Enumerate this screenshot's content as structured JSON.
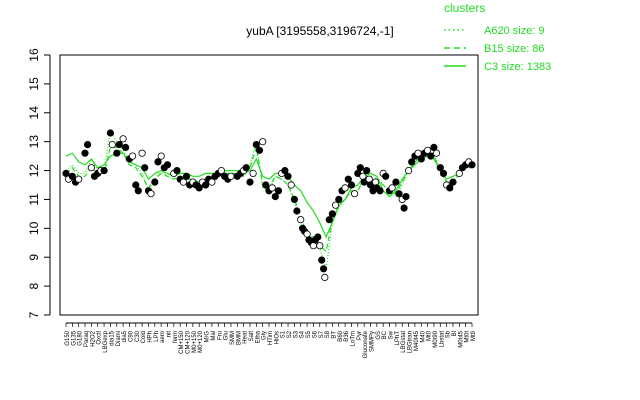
{
  "chart_data": {
    "type": "line",
    "title": "yubA [3195558,3196724,-1]",
    "xlabel": "",
    "ylabel": "",
    "ylim": [
      7,
      16
    ],
    "yticks": [
      7,
      8,
      9,
      10,
      11,
      12,
      13,
      14,
      15,
      16
    ],
    "legend": {
      "placement": "top-right",
      "title": "clusters",
      "entries": [
        {
          "label": "A620 size: 9",
          "style": "dotted"
        },
        {
          "label": "B15 size: 86",
          "style": "dashed"
        },
        {
          "label": "C3 size: 1383",
          "style": "solid"
        }
      ]
    },
    "colors": {
      "series": "#22dd22",
      "points": "#000000",
      "frame": "#000000"
    },
    "x_tick_labels": [
      "G150",
      "G135",
      "G180",
      "Paraq",
      "H2O2",
      "Oxctl",
      "LBGexp",
      "dia15",
      "Diami",
      "dia5",
      "C90",
      "C30",
      "Cold",
      "HPh",
      "LPh",
      "aero",
      "nit",
      "ferm",
      "CM+150",
      "CM+120",
      "M0+150",
      "M0+120",
      "M/G",
      "Mal",
      "Fru",
      "Glu",
      "SMM",
      "BMM",
      "Heat",
      "Salt",
      "Etha",
      "Gly",
      "HTim",
      "HiOs",
      "S1",
      "S2",
      "S3",
      "S4",
      "S5",
      "S6",
      "S7",
      "S8",
      "BT",
      "B60",
      "B36",
      "LoTm",
      "Pyr",
      "Gluconate",
      "SMMPy",
      "GS",
      "BC",
      "Sw",
      "LPhT",
      "LBGstat",
      "LBGtran",
      "M40t45",
      "M40",
      "Mt0",
      "M0t90",
      "Lbstat",
      "Sb",
      "Bl",
      "M0t45",
      "Mt0t",
      "Mt9"
    ],
    "series": [
      {
        "name": "C3 size: 1383",
        "style": "solid",
        "values": [
          12.5,
          12.6,
          12.3,
          12.2,
          12.4,
          12.1,
          12.2,
          12.5,
          12.6,
          12.6,
          12.3,
          12.2,
          12.1,
          11.7,
          11.9,
          12.0,
          11.9,
          11.8,
          11.9,
          11.9,
          11.8,
          11.8,
          11.9,
          11.9,
          11.9,
          12.0,
          12.0,
          12.0,
          11.9,
          12.0,
          12.4,
          11.8,
          11.7,
          11.9,
          11.9,
          11.8,
          11.5,
          11.3,
          10.9,
          10.6,
          10.2,
          9.7,
          10.2,
          10.8,
          11.0,
          11.4,
          11.5,
          11.8,
          11.9,
          11.8,
          11.3,
          11.1,
          11.3,
          11.7,
          12.0,
          12.2,
          12.4,
          12.5,
          12.4,
          12.0,
          11.7,
          11.8,
          11.9,
          12.1,
          12.1
        ]
      },
      {
        "name": "B15 size: 86",
        "style": "dashed",
        "values": [
          11.9,
          12.1,
          11.8,
          11.8,
          12.1,
          11.9,
          11.9,
          12.8,
          12.8,
          12.6,
          12.2,
          12.1,
          11.8,
          11.4,
          11.7,
          11.9,
          11.8,
          11.7,
          11.8,
          11.7,
          11.7,
          11.6,
          11.7,
          11.8,
          11.8,
          11.9,
          11.9,
          11.9,
          11.8,
          12.1,
          12.8,
          11.5,
          11.4,
          11.8,
          11.7,
          11.5,
          11.0,
          10.4,
          9.8,
          9.7,
          9.4,
          9.2,
          10.3,
          10.8,
          11.0,
          11.3,
          11.3,
          11.7,
          11.8,
          11.7,
          11.5,
          11.3,
          11.2,
          11.6,
          12.0,
          12.3,
          12.5,
          12.6,
          12.5,
          12.0,
          11.6,
          11.6,
          11.9,
          12.1,
          12.2
        ]
      },
      {
        "name": "A620 size: 9",
        "style": "dotted",
        "values": [
          12.0,
          12.2,
          11.9,
          11.9,
          12.4,
          12.0,
          12.0,
          13.4,
          13.0,
          12.7,
          12.3,
          12.2,
          11.9,
          11.3,
          11.7,
          12.0,
          11.8,
          11.7,
          11.8,
          11.7,
          11.7,
          11.5,
          11.6,
          11.8,
          11.8,
          11.9,
          11.9,
          11.9,
          11.8,
          12.2,
          13.0,
          11.4,
          11.3,
          11.8,
          11.7,
          11.5,
          10.9,
          10.2,
          9.6,
          9.4,
          9.3,
          8.6,
          10.2,
          10.7,
          11.0,
          11.3,
          11.3,
          11.8,
          11.9,
          11.8,
          11.5,
          11.3,
          11.1,
          11.5,
          12.0,
          12.3,
          12.6,
          12.7,
          12.6,
          12.0,
          11.6,
          11.6,
          11.9,
          12.1,
          12.3
        ]
      }
    ],
    "points": [
      {
        "x": 0,
        "y": 11.9
      },
      {
        "x": 0.4,
        "y": 11.7
      },
      {
        "x": 1,
        "y": 11.8
      },
      {
        "x": 1.5,
        "y": 11.6
      },
      {
        "x": 2,
        "y": 11.7
      },
      {
        "x": 3,
        "y": 12.6
      },
      {
        "x": 3.4,
        "y": 12.9
      },
      {
        "x": 4,
        "y": 12.1
      },
      {
        "x": 4.5,
        "y": 11.8
      },
      {
        "x": 5,
        "y": 11.9
      },
      {
        "x": 5.5,
        "y": 12.0
      },
      {
        "x": 6,
        "y": 12.0
      },
      {
        "x": 7,
        "y": 13.3
      },
      {
        "x": 7.3,
        "y": 12.9
      },
      {
        "x": 8,
        "y": 12.6
      },
      {
        "x": 8.4,
        "y": 12.9
      },
      {
        "x": 9,
        "y": 13.1
      },
      {
        "x": 9.4,
        "y": 12.8
      },
      {
        "x": 10,
        "y": 12.4
      },
      {
        "x": 10.5,
        "y": 12.5
      },
      {
        "x": 11,
        "y": 11.5
      },
      {
        "x": 11.4,
        "y": 11.3
      },
      {
        "x": 12,
        "y": 12.6
      },
      {
        "x": 12.4,
        "y": 12.1
      },
      {
        "x": 13,
        "y": 11.3
      },
      {
        "x": 13.4,
        "y": 11.2
      },
      {
        "x": 14,
        "y": 11.6
      },
      {
        "x": 14.5,
        "y": 12.3
      },
      {
        "x": 15,
        "y": 12.5
      },
      {
        "x": 15.5,
        "y": 12.1
      },
      {
        "x": 16,
        "y": 12.2
      },
      {
        "x": 17,
        "y": 11.9
      },
      {
        "x": 17.5,
        "y": 12.0
      },
      {
        "x": 18,
        "y": 11.7
      },
      {
        "x": 18.5,
        "y": 11.6
      },
      {
        "x": 19,
        "y": 11.8
      },
      {
        "x": 19.5,
        "y": 11.5
      },
      {
        "x": 20,
        "y": 11.6
      },
      {
        "x": 20.5,
        "y": 11.5
      },
      {
        "x": 21,
        "y": 11.4
      },
      {
        "x": 21.5,
        "y": 11.6
      },
      {
        "x": 22,
        "y": 11.5
      },
      {
        "x": 22.5,
        "y": 11.7
      },
      {
        "x": 23,
        "y": 11.6
      },
      {
        "x": 23.5,
        "y": 11.8
      },
      {
        "x": 24,
        "y": 11.9
      },
      {
        "x": 24.5,
        "y": 12.0
      },
      {
        "x": 25,
        "y": 11.8
      },
      {
        "x": 25.5,
        "y": 11.7
      },
      {
        "x": 26,
        "y": 11.8
      },
      {
        "x": 27,
        "y": 11.8
      },
      {
        "x": 27.5,
        "y": 11.9
      },
      {
        "x": 28,
        "y": 12.0
      },
      {
        "x": 28.4,
        "y": 12.1
      },
      {
        "x": 29,
        "y": 11.6
      },
      {
        "x": 29.5,
        "y": 11.9
      },
      {
        "x": 30,
        "y": 12.9
      },
      {
        "x": 30.5,
        "y": 12.7
      },
      {
        "x": 31,
        "y": 13.0
      },
      {
        "x": 31.5,
        "y": 11.5
      },
      {
        "x": 32,
        "y": 11.3
      },
      {
        "x": 32.5,
        "y": 11.4
      },
      {
        "x": 33,
        "y": 11.1
      },
      {
        "x": 33.5,
        "y": 11.3
      },
      {
        "x": 34,
        "y": 11.9
      },
      {
        "x": 34.5,
        "y": 12.0
      },
      {
        "x": 35,
        "y": 11.8
      },
      {
        "x": 35.5,
        "y": 11.5
      },
      {
        "x": 36,
        "y": 11.0
      },
      {
        "x": 36.4,
        "y": 10.6
      },
      {
        "x": 37,
        "y": 10.3
      },
      {
        "x": 37.3,
        "y": 10.0
      },
      {
        "x": 37.6,
        "y": 9.9
      },
      {
        "x": 38,
        "y": 9.8
      },
      {
        "x": 38.3,
        "y": 9.6
      },
      {
        "x": 38.7,
        "y": 9.5
      },
      {
        "x": 39,
        "y": 9.4
      },
      {
        "x": 39.3,
        "y": 9.6
      },
      {
        "x": 39.7,
        "y": 9.7
      },
      {
        "x": 40,
        "y": 9.4
      },
      {
        "x": 40.3,
        "y": 8.9
      },
      {
        "x": 40.6,
        "y": 8.6
      },
      {
        "x": 40.8,
        "y": 8.3
      },
      {
        "x": 41.5,
        "y": 10.3
      },
      {
        "x": 42,
        "y": 10.5
      },
      {
        "x": 42.5,
        "y": 10.8
      },
      {
        "x": 43,
        "y": 11.0
      },
      {
        "x": 43.5,
        "y": 11.3
      },
      {
        "x": 44,
        "y": 11.4
      },
      {
        "x": 44.5,
        "y": 11.7
      },
      {
        "x": 45,
        "y": 11.5
      },
      {
        "x": 45.5,
        "y": 11.2
      },
      {
        "x": 46,
        "y": 11.9
      },
      {
        "x": 46.4,
        "y": 12.1
      },
      {
        "x": 46.8,
        "y": 11.8
      },
      {
        "x": 47,
        "y": 11.6
      },
      {
        "x": 47.4,
        "y": 12.0
      },
      {
        "x": 47.8,
        "y": 11.7
      },
      {
        "x": 48,
        "y": 11.5
      },
      {
        "x": 48.4,
        "y": 11.3
      },
      {
        "x": 48.8,
        "y": 11.6
      },
      {
        "x": 49,
        "y": 11.4
      },
      {
        "x": 49.5,
        "y": 11.3
      },
      {
        "x": 50,
        "y": 11.9
      },
      {
        "x": 50.4,
        "y": 11.8
      },
      {
        "x": 51,
        "y": 11.3
      },
      {
        "x": 51.4,
        "y": 11.4
      },
      {
        "x": 52,
        "y": 11.6
      },
      {
        "x": 52.5,
        "y": 11.2
      },
      {
        "x": 53,
        "y": 11.0
      },
      {
        "x": 53.3,
        "y": 10.7
      },
      {
        "x": 53.6,
        "y": 11.1
      },
      {
        "x": 54,
        "y": 12.0
      },
      {
        "x": 54.5,
        "y": 12.3
      },
      {
        "x": 55,
        "y": 12.5
      },
      {
        "x": 55.5,
        "y": 12.6
      },
      {
        "x": 56,
        "y": 12.4
      },
      {
        "x": 56.5,
        "y": 12.6
      },
      {
        "x": 57,
        "y": 12.7
      },
      {
        "x": 57.5,
        "y": 12.5
      },
      {
        "x": 58,
        "y": 12.8
      },
      {
        "x": 58.4,
        "y": 12.6
      },
      {
        "x": 59,
        "y": 12.1
      },
      {
        "x": 59.5,
        "y": 11.9
      },
      {
        "x": 60,
        "y": 11.5
      },
      {
        "x": 60.5,
        "y": 11.4
      },
      {
        "x": 61,
        "y": 11.6
      },
      {
        "x": 62,
        "y": 11.9
      },
      {
        "x": 62.5,
        "y": 12.1
      },
      {
        "x": 63,
        "y": 12.2
      },
      {
        "x": 63.5,
        "y": 12.3
      },
      {
        "x": 64,
        "y": 12.2
      }
    ]
  }
}
